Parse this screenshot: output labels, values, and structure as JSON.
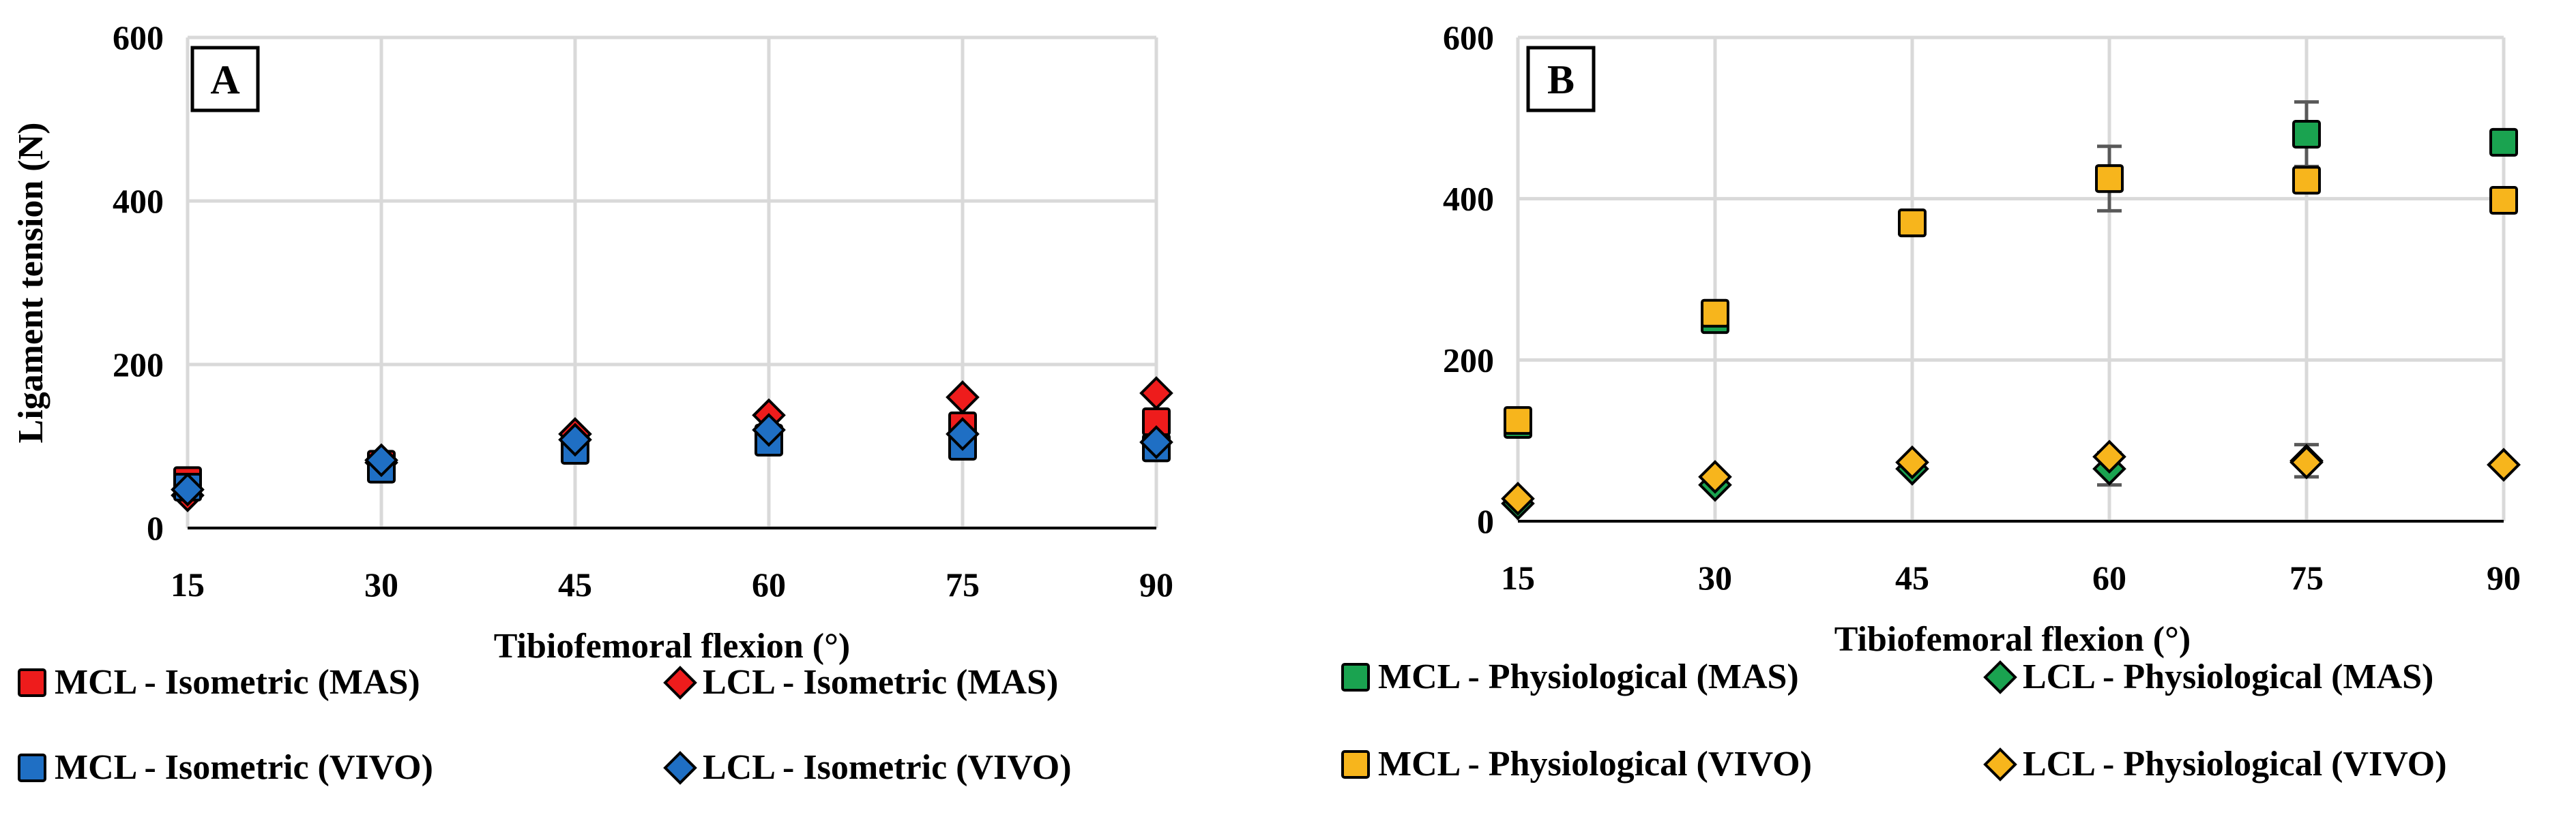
{
  "colors": {
    "red": "#ee1c1c",
    "blue": "#1f6fc4",
    "green": "#1aa350",
    "yellow": "#f7b51c",
    "grid": "#d9d9d9",
    "errorbar": "#595959"
  },
  "chart_data": [
    {
      "type": "scatter",
      "panel_label": "A",
      "xlabel": "Tibiofemoral flexion (°)",
      "ylabel": "Ligament tension (N)",
      "x": [
        15,
        30,
        45,
        60,
        75,
        90
      ],
      "xticks": [
        "15",
        "30",
        "45",
        "60",
        "75",
        "90"
      ],
      "ylim": [
        0,
        600
      ],
      "yticks": [
        "0",
        "200",
        "400",
        "600"
      ],
      "grid": true,
      "legend_position": "bottom",
      "series": [
        {
          "name": "MCL - Isometric (MAS)",
          "marker": "square",
          "color": "red",
          "values": [
            58,
            78,
            100,
            110,
            125,
            130
          ]
        },
        {
          "name": "LCL - Isometric (MAS)",
          "marker": "diamond",
          "color": "red",
          "values": [
            40,
            80,
            115,
            138,
            160,
            165
          ]
        },
        {
          "name": "MCL - Isometric (VIVO)",
          "marker": "square",
          "color": "blue",
          "values": [
            50,
            72,
            95,
            105,
            100,
            98
          ]
        },
        {
          "name": "LCL - Isometric (VIVO)",
          "marker": "diamond",
          "color": "blue",
          "values": [
            47,
            83,
            108,
            120,
            115,
            105
          ]
        }
      ]
    },
    {
      "type": "scatter",
      "panel_label": "B",
      "xlabel": "Tibiofemoral flexion (°)",
      "ylabel": "",
      "x": [
        15,
        30,
        45,
        60,
        75,
        90
      ],
      "xticks": [
        "15",
        "30",
        "45",
        "60",
        "75",
        "90"
      ],
      "ylim": [
        0,
        600
      ],
      "yticks": [
        "0",
        "200",
        "400",
        "600"
      ],
      "grid": true,
      "legend_position": "bottom",
      "series": [
        {
          "name": "MCL - Physiological (MAS)",
          "marker": "square",
          "color": "green",
          "values": [
            120,
            250,
            370,
            425,
            480,
            470
          ],
          "error": [
            0,
            0,
            0,
            40,
            40,
            0
          ]
        },
        {
          "name": "LCL - Physiological (MAS)",
          "marker": "diamond",
          "color": "green",
          "values": [
            22,
            45,
            65,
            65,
            75,
            70
          ],
          "error": [
            0,
            0,
            0,
            20,
            20,
            0
          ]
        },
        {
          "name": "MCL - Physiological (VIVO)",
          "marker": "square",
          "color": "yellow",
          "values": [
            125,
            258,
            370,
            425,
            423,
            398
          ]
        },
        {
          "name": "LCL - Physiological (VIVO)",
          "marker": "diamond",
          "color": "yellow",
          "values": [
            28,
            55,
            73,
            80,
            73,
            70
          ]
        }
      ]
    }
  ]
}
